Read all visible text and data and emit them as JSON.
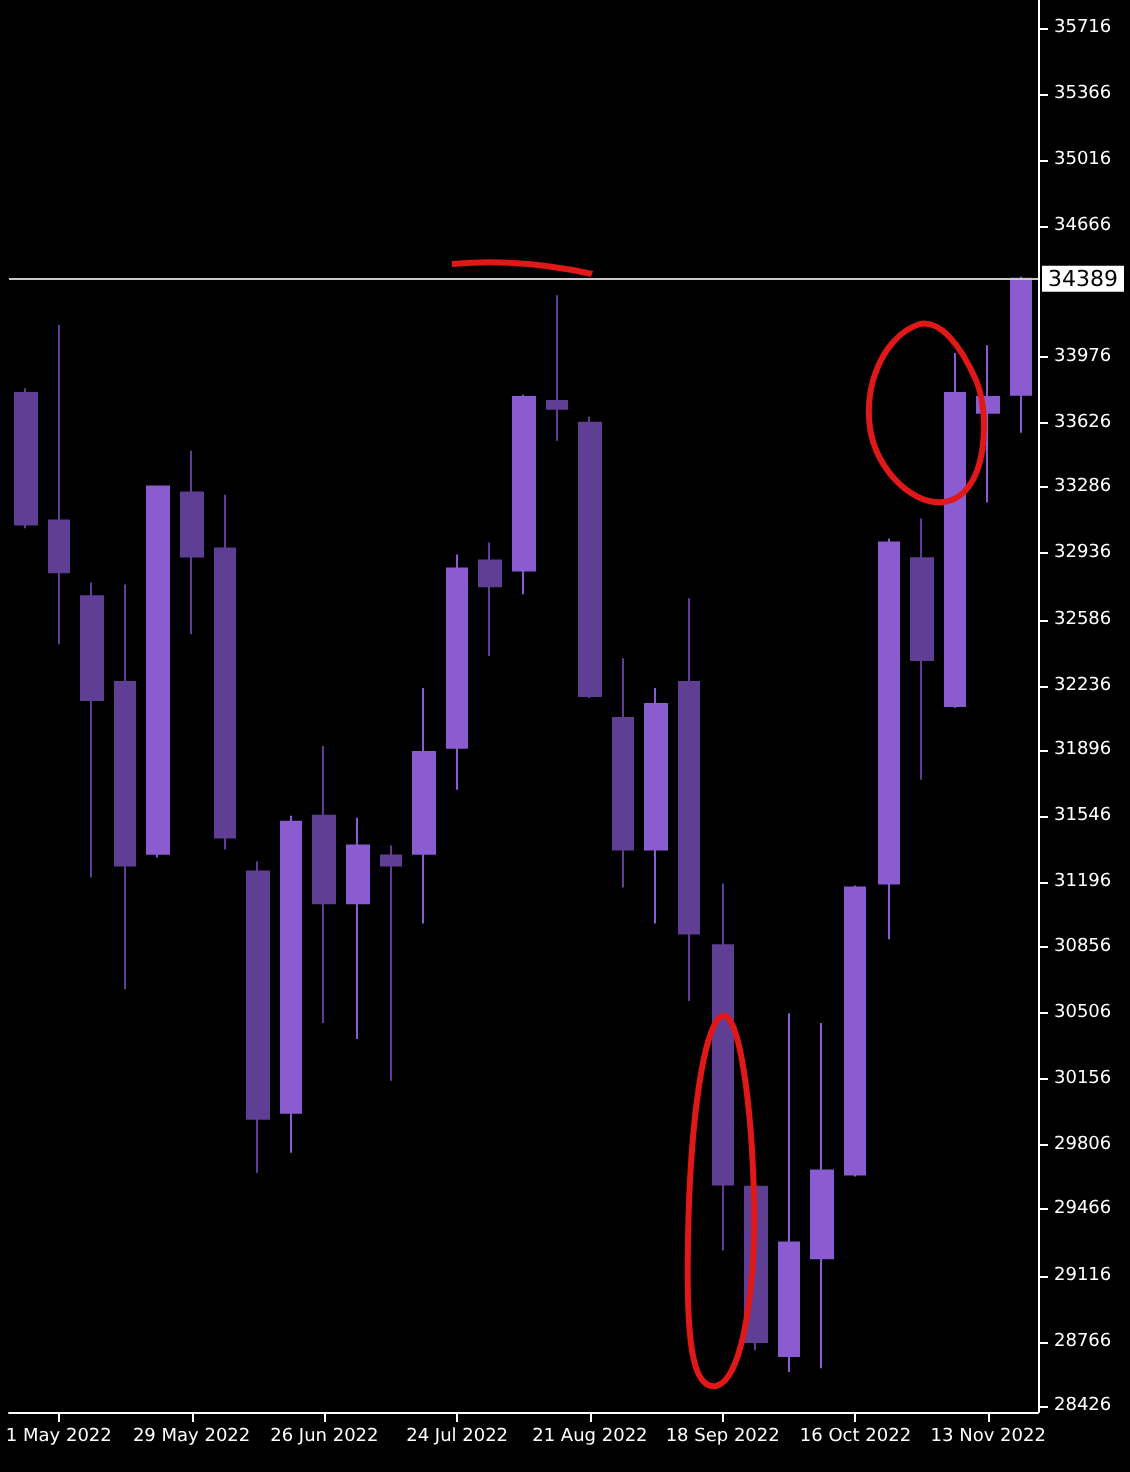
{
  "chart_data": {
    "type": "candlestick",
    "categories": [
      null,
      "1 May 2022",
      null,
      null,
      null,
      "29 May 2022",
      null,
      null,
      null,
      "26 Jun 2022",
      null,
      null,
      null,
      "24 Jul 2022",
      null,
      null,
      null,
      "21 Aug 2022",
      null,
      null,
      null,
      "18 Sep 2022",
      null,
      null,
      null,
      "16 Oct 2022",
      null,
      null,
      null,
      "13 Nov 2022",
      null
    ],
    "ohlc": [
      [
        33785,
        33810,
        33070,
        33089
      ],
      [
        33110,
        34144,
        32456,
        32836
      ],
      [
        32709,
        32783,
        31222,
        32161
      ],
      [
        32256,
        32772,
        30631,
        31285
      ],
      [
        31348,
        33290,
        31327,
        33290
      ],
      [
        33258,
        33479,
        32509,
        32920
      ],
      [
        32962,
        33247,
        31370,
        31433
      ],
      [
        31253,
        31306,
        29660,
        29945
      ],
      [
        29977,
        31549,
        29766,
        31517
      ],
      [
        31549,
        31918,
        30452,
        31085
      ],
      [
        31085,
        31538,
        30367,
        31391
      ],
      [
        31338,
        31391,
        30146,
        31285
      ],
      [
        31348,
        32224,
        30979,
        31886
      ],
      [
        31908,
        32931,
        31686,
        32857
      ],
      [
        32899,
        32994,
        32393,
        32762
      ],
      [
        32846,
        33775,
        32720,
        33764
      ],
      [
        33743,
        34302,
        33532,
        33701
      ],
      [
        33627,
        33659,
        32171,
        32182
      ],
      [
        32066,
        32382,
        31169,
        31370
      ],
      [
        31370,
        32224,
        30979,
        32140
      ],
      [
        32256,
        32699,
        30568,
        30926
      ],
      [
        30863,
        31190,
        29249,
        29597
      ],
      [
        29586,
        29597,
        28721,
        28764
      ],
      [
        28690,
        30504,
        28605,
        29291
      ],
      [
        29207,
        30452,
        28626,
        29671
      ],
      [
        29650,
        31180,
        29640,
        31169
      ],
      [
        31190,
        33015,
        30895,
        32994
      ],
      [
        32910,
        33121,
        31739,
        32372
      ],
      [
        32129,
        33996,
        32120,
        33785
      ],
      [
        33680,
        34038,
        33205,
        33764
      ],
      [
        33775,
        34400,
        33574,
        34389
      ]
    ],
    "colors": [
      "#5f3f93",
      "#5f3f93",
      "#5f3f93",
      "#5f3f93",
      "#8a5ccf",
      "#5f3f93",
      "#5f3f93",
      "#5f3f93",
      "#8a5ccf",
      "#5f3f93",
      "#8a5ccf",
      "#5f3f93",
      "#8a5ccf",
      "#8a5ccf",
      "#5f3f93",
      "#8a5ccf",
      "#5f3f93",
      "#5f3f93",
      "#5f3f93",
      "#8a5ccf",
      "#5f3f93",
      "#5f3f93",
      "#5f3f93",
      "#8a5ccf",
      "#8a5ccf",
      "#8a5ccf",
      "#8a5ccf",
      "#5f3f93",
      "#8a5ccf",
      "#8a5ccf",
      "#8a5ccf"
    ],
    "ylim": [
      28394,
      35864
    ],
    "yticks": [
      28426,
      28766,
      29116,
      29466,
      29806,
      30156,
      30506,
      30856,
      31196,
      31546,
      31896,
      32236,
      32586,
      32936,
      33286,
      33626,
      33976,
      34666,
      35016,
      35366,
      35716
    ],
    "ref_lines": [
      {
        "axis": "y",
        "value": 34389,
        "label": "34389",
        "color": "#c8c8c8"
      }
    ],
    "grid": false
  }
}
